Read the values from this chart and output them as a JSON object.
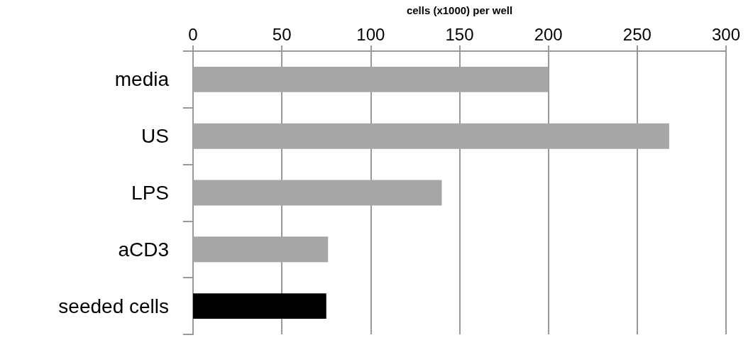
{
  "chart_data": {
    "type": "bar",
    "orientation": "horizontal",
    "xlabel": "cells (x1000) per well",
    "categories": [
      "media",
      "US",
      "LPS",
      "aCD3",
      "seeded cells"
    ],
    "values": [
      200,
      268,
      140,
      76,
      75
    ],
    "colors": [
      "#a6a6a6",
      "#a6a6a6",
      "#a6a6a6",
      "#a6a6a6",
      "#000000"
    ],
    "xlim": [
      0,
      300
    ],
    "xticks": [
      0,
      50,
      100,
      150,
      200,
      250,
      300
    ],
    "grid": "x"
  }
}
